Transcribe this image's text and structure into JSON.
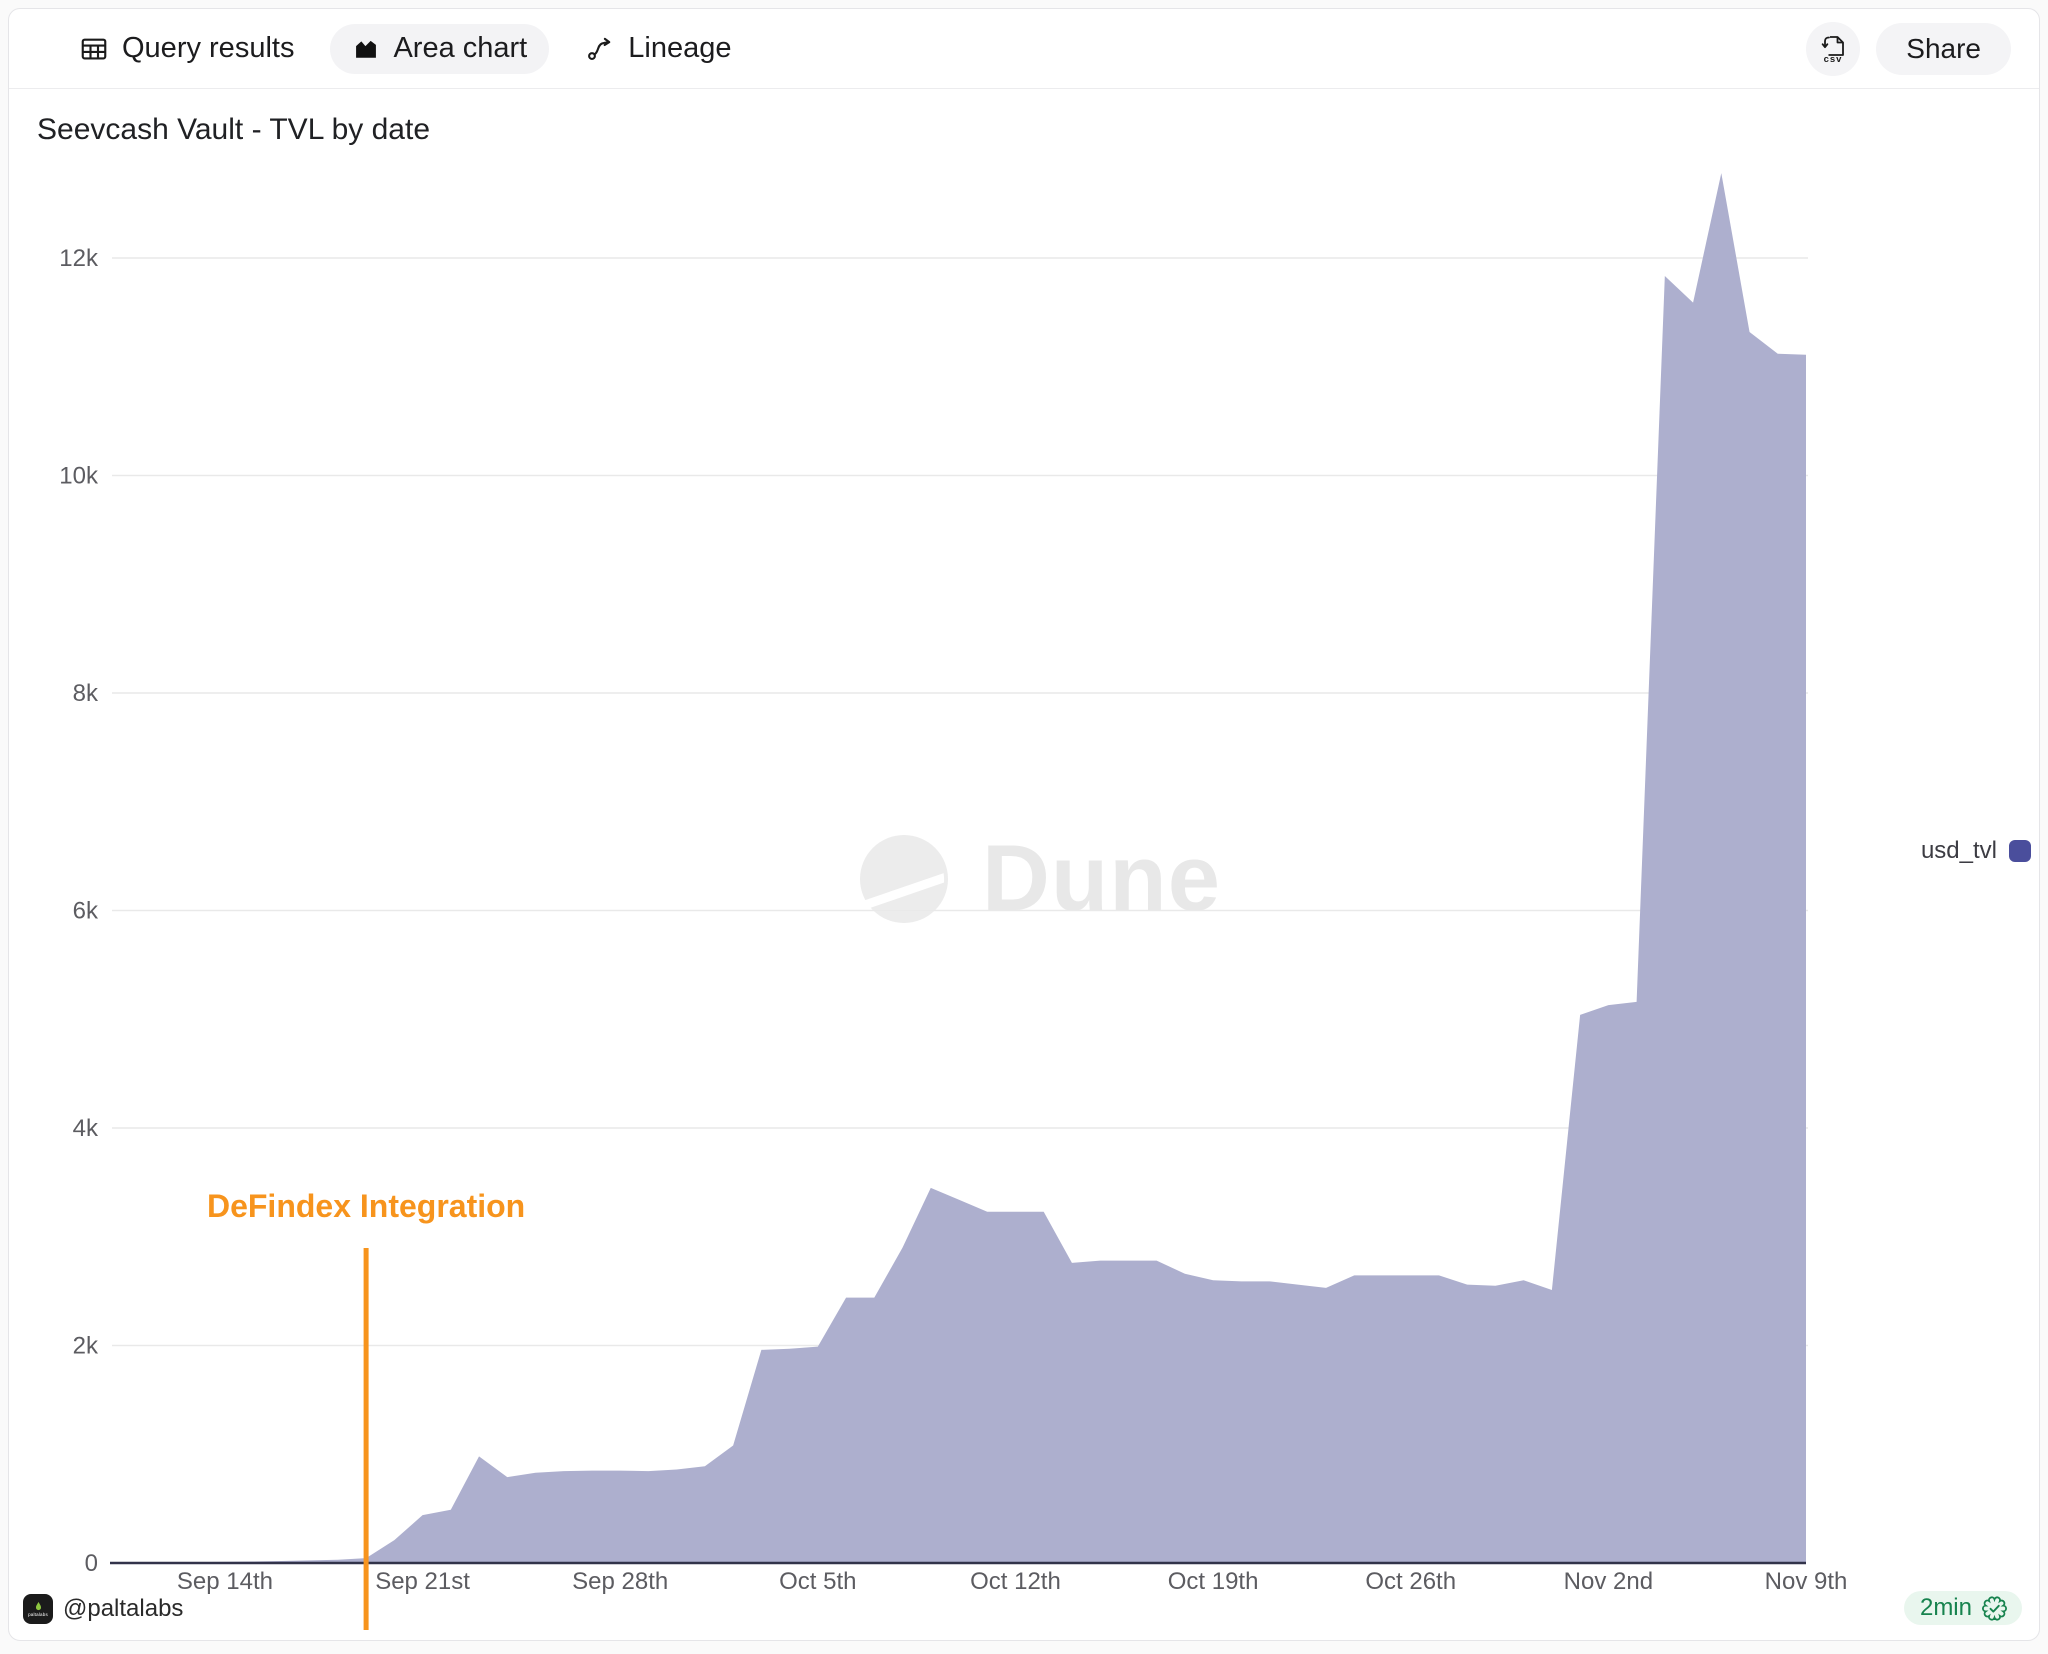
{
  "toolbar": {
    "tabs": [
      {
        "label": "Query results"
      },
      {
        "label": "Area chart"
      },
      {
        "label": "Lineage"
      }
    ],
    "csv_label": "csv",
    "share_label": "Share"
  },
  "header": {
    "title": "Seevcash Vault - TVL by date"
  },
  "watermark": {
    "text": "Dune"
  },
  "legend": {
    "label": "usd_tvl",
    "color": "#4a4e9c"
  },
  "annotation": {
    "label": "DeFindex Integration"
  },
  "footer": {
    "handle": "@paltalabs",
    "avatar_text": "paltalabs",
    "runtime": "2min"
  },
  "chart_data": {
    "type": "area",
    "title": "Seevcash Vault - TVL by date",
    "grid": true,
    "legend_position": "right",
    "colors": {
      "fill": "#adafce",
      "line": "#4a4e9c",
      "axis": "#32334a",
      "gridline": "#e9e9e9",
      "tick_text": "#5c5c61",
      "annotation": "#f7941d"
    },
    "y_axis": {
      "ticks": [
        {
          "label": "0",
          "value": 0
        },
        {
          "label": "2k",
          "value": 2000
        },
        {
          "label": "4k",
          "value": 4000
        },
        {
          "label": "6k",
          "value": 6000
        },
        {
          "label": "8k",
          "value": 8000
        },
        {
          "label": "10k",
          "value": 10000
        },
        {
          "label": "12k",
          "value": 12000
        }
      ],
      "max_plotted": 12780
    },
    "x_axis": {
      "ticks": [
        {
          "label": "Sep 14th",
          "index": 4
        },
        {
          "label": "Sep 21st",
          "index": 11
        },
        {
          "label": "Sep 28th",
          "index": 18
        },
        {
          "label": "Oct 5th",
          "index": 25
        },
        {
          "label": "Oct 12th",
          "index": 32
        },
        {
          "label": "Oct 19th",
          "index": 39
        },
        {
          "label": "Oct 26th",
          "index": 46
        },
        {
          "label": "Nov 2nd",
          "index": 53
        },
        {
          "label": "Nov 9th",
          "index": 60
        }
      ]
    },
    "annotation": {
      "label": "DeFindex Integration",
      "index": 9,
      "date": "Sep 19"
    },
    "series": [
      {
        "name": "usd_tvl",
        "points": [
          [
            "Sep 10",
            0
          ],
          [
            "Sep 11",
            3
          ],
          [
            "Sep 12",
            5
          ],
          [
            "Sep 13",
            8
          ],
          [
            "Sep 14",
            10
          ],
          [
            "Sep 15",
            14
          ],
          [
            "Sep 16",
            18
          ],
          [
            "Sep 17",
            24
          ],
          [
            "Sep 18",
            30
          ],
          [
            "Sep 19",
            45
          ],
          [
            "Sep 20",
            210
          ],
          [
            "Sep 21",
            440
          ],
          [
            "Sep 22",
            490
          ],
          [
            "Sep 23",
            980
          ],
          [
            "Sep 24",
            790
          ],
          [
            "Sep 25",
            830
          ],
          [
            "Sep 26",
            845
          ],
          [
            "Sep 27",
            850
          ],
          [
            "Sep 28",
            850
          ],
          [
            "Sep 29",
            845
          ],
          [
            "Sep 30",
            860
          ],
          [
            "Oct 1",
            890
          ],
          [
            "Oct 2",
            1080
          ],
          [
            "Oct 3",
            1960
          ],
          [
            "Oct 4",
            1970
          ],
          [
            "Oct 5",
            1990
          ],
          [
            "Oct 6",
            2440
          ],
          [
            "Oct 7",
            2440
          ],
          [
            "Oct 8",
            2900
          ],
          [
            "Oct 9",
            3450
          ],
          [
            "Oct 10",
            3340
          ],
          [
            "Oct 11",
            3230
          ],
          [
            "Oct 12",
            3230
          ],
          [
            "Oct 13",
            3230
          ],
          [
            "Oct 14",
            2760
          ],
          [
            "Oct 15",
            2780
          ],
          [
            "Oct 16",
            2780
          ],
          [
            "Oct 17",
            2780
          ],
          [
            "Oct 18",
            2660
          ],
          [
            "Oct 19",
            2600
          ],
          [
            "Oct 20",
            2590
          ],
          [
            "Oct 21",
            2590
          ],
          [
            "Oct 22",
            2560
          ],
          [
            "Oct 23",
            2530
          ],
          [
            "Oct 24",
            2645
          ],
          [
            "Oct 25",
            2645
          ],
          [
            "Oct 26",
            2645
          ],
          [
            "Oct 27",
            2645
          ],
          [
            "Oct 28",
            2560
          ],
          [
            "Oct 29",
            2550
          ],
          [
            "Oct 30",
            2600
          ],
          [
            "Oct 31",
            2510
          ],
          [
            "Nov 1",
            5040
          ],
          [
            "Nov 2",
            5130
          ],
          [
            "Nov 3",
            5160
          ],
          [
            "Nov 4",
            11835
          ],
          [
            "Nov 5",
            11590
          ],
          [
            "Nov 6",
            12780
          ],
          [
            "Nov 7",
            11320
          ],
          [
            "Nov 8",
            11120
          ],
          [
            "Nov 9",
            11110
          ]
        ]
      }
    ]
  }
}
